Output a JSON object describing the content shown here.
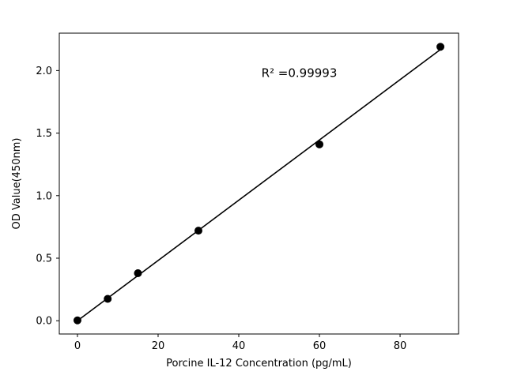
{
  "chart_data": {
    "type": "scatter",
    "title": "",
    "xlabel": "Porcine IL-12 Concentration (pg/mL)",
    "ylabel": "OD Value(450nm)",
    "x": [
      0,
      7.5,
      15,
      30,
      60,
      90
    ],
    "y": [
      0.003,
      0.175,
      0.38,
      0.72,
      1.41,
      2.19
    ],
    "fit_line": true,
    "annotation": "R² =0.99993",
    "annotation_xy": [
      55,
      1.95
    ],
    "xlim": [
      -4.5,
      94.5
    ],
    "ylim": [
      -0.106,
      2.299
    ],
    "xtick_values": [
      0,
      20,
      40,
      60,
      80
    ],
    "xtick_labels": [
      "0",
      "20",
      "40",
      "60",
      "80"
    ],
    "ytick_values": [
      0.0,
      0.5,
      1.0,
      1.5,
      2.0
    ],
    "ytick_labels": [
      "0.0",
      "0.5",
      "1.0",
      "1.5",
      "2.0"
    ],
    "grid": false,
    "legend": "none",
    "marker_color": "#000000",
    "line_color": "#000000",
    "axis_color": "#000000",
    "background": "#ffffff"
  }
}
